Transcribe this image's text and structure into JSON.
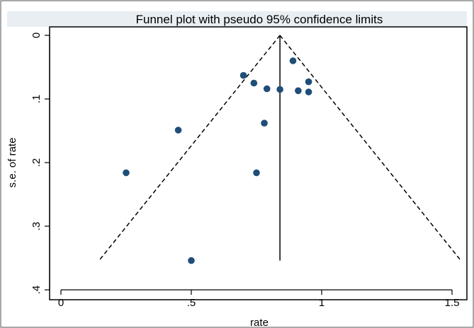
{
  "chart_data": {
    "type": "scatter",
    "title": "Funnel plot with pseudo 95% confidence limits",
    "xlabel": "rate",
    "ylabel": "s.e. of rate",
    "xlim": [
      0,
      1.5
    ],
    "ylim": [
      0,
      0.4
    ],
    "y_reversed": true,
    "grid": false,
    "x_ticks": [
      {
        "value": 0,
        "label": "0"
      },
      {
        "value": 0.5,
        "label": ".5"
      },
      {
        "value": 1,
        "label": "1"
      },
      {
        "value": 1.5,
        "label": "1.5"
      }
    ],
    "y_ticks": [
      {
        "value": 0,
        "label": "0"
      },
      {
        "value": 0.1,
        "label": ".1"
      },
      {
        "value": 0.2,
        "label": ".2"
      },
      {
        "value": 0.3,
        "label": ".3"
      },
      {
        "value": 0.4,
        "label": ".4"
      }
    ],
    "points": [
      {
        "x": 0.25,
        "y": 0.216
      },
      {
        "x": 0.45,
        "y": 0.149
      },
      {
        "x": 0.5,
        "y": 0.354
      },
      {
        "x": 0.7,
        "y": 0.063
      },
      {
        "x": 0.74,
        "y": 0.075
      },
      {
        "x": 0.75,
        "y": 0.216
      },
      {
        "x": 0.78,
        "y": 0.138
      },
      {
        "x": 0.79,
        "y": 0.084
      },
      {
        "x": 0.84,
        "y": 0.085
      },
      {
        "x": 0.89,
        "y": 0.04
      },
      {
        "x": 0.91,
        "y": 0.087
      },
      {
        "x": 0.95,
        "y": 0.073
      },
      {
        "x": 0.95,
        "y": 0.089
      }
    ],
    "pooled_estimate": 0.84,
    "pseudo_ci_max_se": 0.355,
    "colors": {
      "point": "#1f4e79",
      "line": "#000000",
      "title_band": "#e8eef2",
      "frame": "#000000"
    }
  }
}
